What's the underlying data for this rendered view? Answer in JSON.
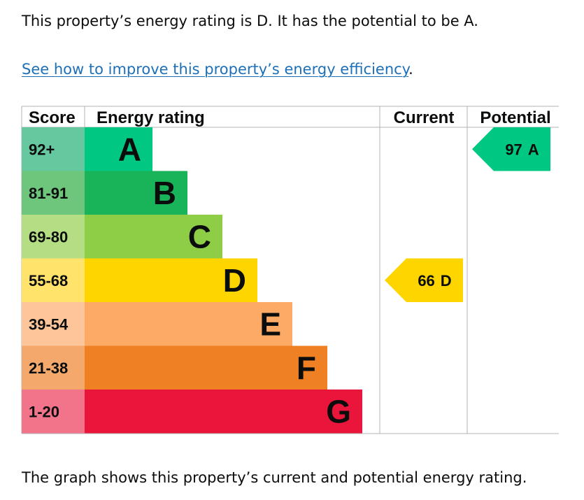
{
  "summary": {
    "text": "This property’s energy rating is D. It has the potential to be A."
  },
  "improve_link": {
    "label": "See how to improve this property’s energy efficiency",
    "trailing": "."
  },
  "caption": {
    "text": "The graph shows this property’s current and potential energy rating."
  },
  "headers": {
    "score": "Score",
    "energy_rating": "Energy rating",
    "current": "Current",
    "potential": "Potential"
  },
  "chart_data": {
    "type": "bar",
    "title": "",
    "categories": [
      "A",
      "B",
      "C",
      "D",
      "E",
      "F",
      "G"
    ],
    "scores": [
      "92+",
      "81-91",
      "69-80",
      "55-68",
      "39-54",
      "21-38",
      "1-20"
    ],
    "bar_colors": [
      "#00c781",
      "#19b459",
      "#8dce46",
      "#ffd500",
      "#fcaa65",
      "#ef8023",
      "#e9153b"
    ],
    "score_colors": [
      "#66c89e",
      "#6ec57c",
      "#b4dd84",
      "#ffe36a",
      "#fdc59a",
      "#f4a86b",
      "#f1748a"
    ],
    "current": {
      "score": 66,
      "band": "D",
      "color": "#ffd500"
    },
    "potential": {
      "score": 97,
      "band": "A",
      "color": "#00c781"
    }
  }
}
